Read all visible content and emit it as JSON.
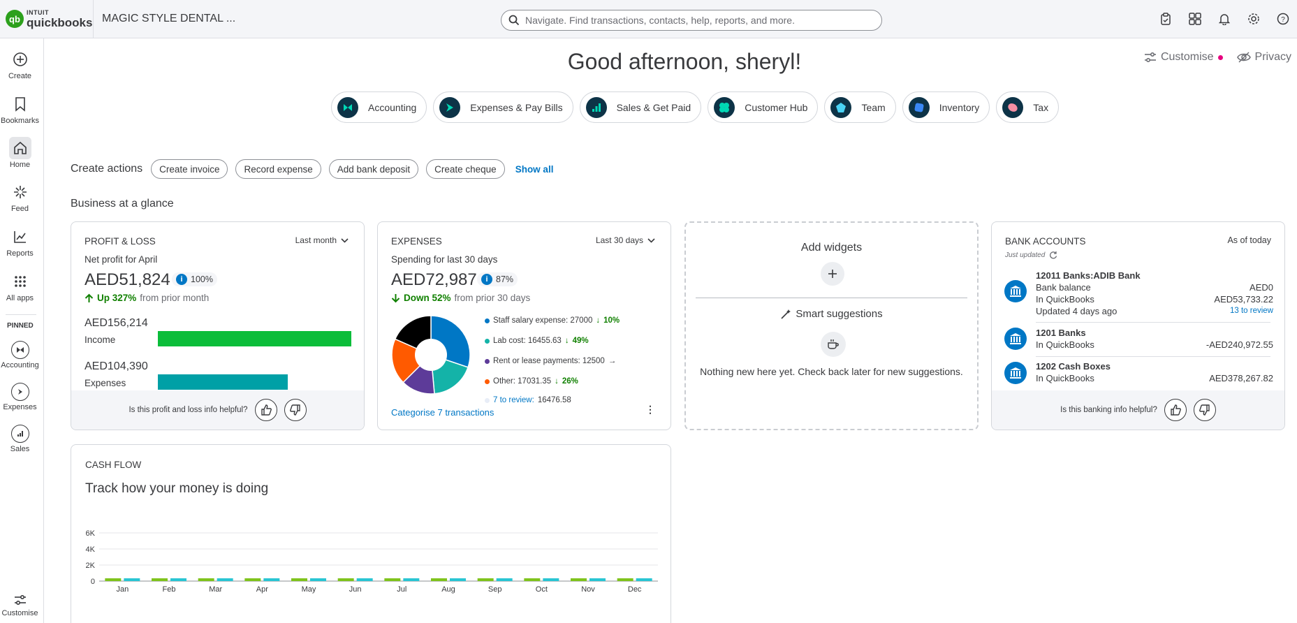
{
  "topbar": {
    "logo_top": "INTUIT",
    "logo_bottom": "quickbooks",
    "logo_mark": "qb",
    "company": "MAGIC STYLE DENTAL ...",
    "search_placeholder": "Navigate. Find transactions, contacts, help, reports, and more.",
    "icons": [
      "tasks-icon",
      "apps-grid-icon",
      "bell-icon",
      "gear-icon",
      "help-icon"
    ]
  },
  "nav": {
    "items": [
      {
        "label": "Create",
        "icon": "plus-circle-icon"
      },
      {
        "label": "Bookmarks",
        "icon": "bookmark-icon"
      },
      {
        "label": "Home",
        "icon": "home-icon"
      },
      {
        "label": "Feed",
        "icon": "sparkle-icon"
      },
      {
        "label": "Reports",
        "icon": "chart-line-icon"
      },
      {
        "label": "All apps",
        "icon": "grid-dots-icon"
      }
    ],
    "pinned_label": "PINNED",
    "pinned": [
      {
        "label": "Accounting"
      },
      {
        "label": "Expenses"
      },
      {
        "label": "Sales"
      }
    ],
    "customise": "Customise"
  },
  "greeting": "Good afternoon, sheryl!",
  "customise_link": "Customise",
  "privacy_link": "Privacy",
  "apps": [
    {
      "label": "Accounting",
      "color": "#00d7b5"
    },
    {
      "label": "Expenses & Pay Bills",
      "color": "#00d7b5"
    },
    {
      "label": "Sales & Get Paid",
      "color": "#00d7b5"
    },
    {
      "label": "Customer Hub",
      "color": "#00d7b5"
    },
    {
      "label": "Team",
      "color": "#4ad3f5"
    },
    {
      "label": "Inventory",
      "color": "#3a88f5"
    },
    {
      "label": "Tax",
      "color": "#f58fa3"
    }
  ],
  "create_actions": {
    "title": "Create actions",
    "buttons": [
      "Create invoice",
      "Record expense",
      "Add bank deposit",
      "Create cheque"
    ],
    "show_all": "Show all"
  },
  "glance_title": "Business at a glance",
  "pnl": {
    "title": "PROFIT & LOSS",
    "period": "Last month",
    "subtitle": "Net profit for April",
    "amount": "AED51,824",
    "pct": "100%",
    "trend_value": "Up 327%",
    "trend_text": "from prior month",
    "income_amount": "AED156,214",
    "income_label": "Income",
    "income_fill": 1.0,
    "expenses_amount": "AED104,390",
    "expenses_label": "Expenses",
    "expenses_fill": 0.67,
    "feedback": "Is this profit and loss info helpful?"
  },
  "expenses": {
    "title": "EXPENSES",
    "period": "Last 30 days",
    "subtitle": "Spending for last 30 days",
    "amount": "AED72,987",
    "pct": "87%",
    "trend_value": "Down 52%",
    "trend_text": "from prior 30 days",
    "legend": [
      {
        "label": "Staff salary expense: 27000",
        "change": "10%",
        "color": "#0077c5"
      },
      {
        "label": "Lab cost: 16455.63",
        "change": "49%",
        "color": "#14b3a8"
      },
      {
        "label": "Rent or lease payments: 12500",
        "change": "",
        "color": "#5d3b99"
      },
      {
        "label": "Other: 17031.35",
        "change": "26%",
        "color": "#ff5a00"
      },
      {
        "label_link": "7 to review:",
        "label_value": " 16476.58",
        "color": "#e8edf7"
      }
    ],
    "categorise_link": "Categorise 7 transactions"
  },
  "widgets": {
    "add_title": "Add widgets",
    "smart_title": "Smart suggestions",
    "empty_text": "Nothing new here yet. Check back later for new suggestions."
  },
  "bank": {
    "title": "BANK ACCOUNTS",
    "as_of": "As of today",
    "updated": "Just updated",
    "accounts": [
      {
        "name": "12011 Banks:ADIB Bank",
        "line2": "Bank balance",
        "line3": "In QuickBooks",
        "line4": "Updated 4 days ago",
        "val2": "AED0",
        "val3": "AED53,733.22",
        "review": "13 to review"
      },
      {
        "name": "1201 Banks",
        "line2": "In QuickBooks",
        "val2": "-AED240,972.55"
      },
      {
        "name": "1202 Cash Boxes",
        "line2": "In QuickBooks",
        "val2": "AED378,267.82"
      }
    ],
    "feedback": "Is this banking info helpful?"
  },
  "cashflow": {
    "title": "CASH FLOW",
    "subtitle": "Track how your money is doing"
  },
  "chart_data": {
    "type": "bar",
    "categories": [
      "Jan",
      "Feb",
      "Mar",
      "Apr",
      "May",
      "Jun",
      "Jul",
      "Aug",
      "Sep",
      "Oct",
      "Nov",
      "Dec"
    ],
    "series": [
      {
        "values": [
          0,
          0,
          0,
          0,
          0,
          0,
          0,
          0,
          0,
          0,
          0,
          0
        ],
        "color": "#7fc31c"
      },
      {
        "values": [
          0,
          0,
          0,
          0,
          0,
          0,
          0,
          0,
          0,
          0,
          0,
          0
        ],
        "color": "#29c5d3"
      }
    ],
    "yticks": [
      "6K",
      "4K",
      "2K",
      "0"
    ],
    "ylim": [
      0,
      6000
    ],
    "grid": true
  }
}
